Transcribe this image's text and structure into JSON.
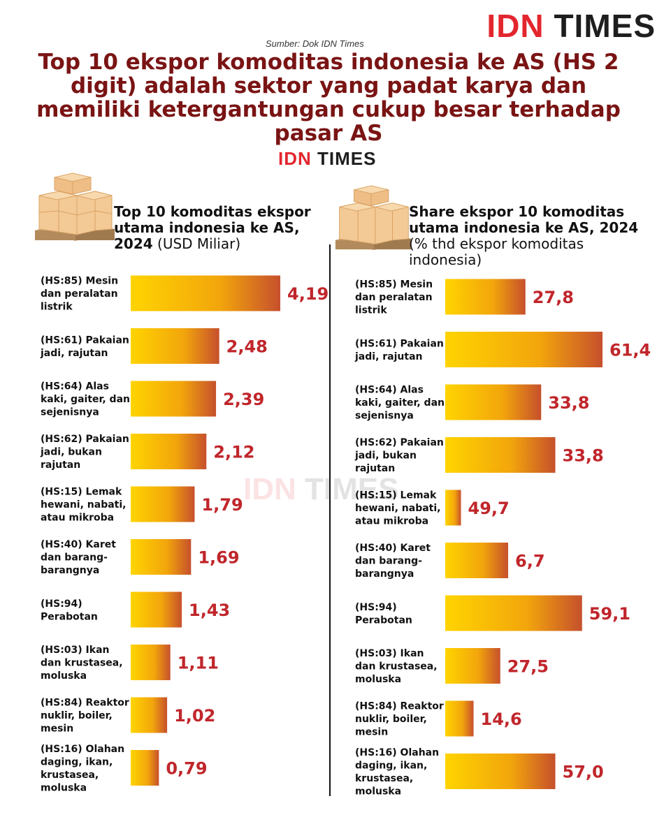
{
  "brand": {
    "idn": "IDN",
    "times": "TIMES"
  },
  "source": "Sumber: Dok IDN Times",
  "headline": "Top 10 ekspor komoditas indonesia ke AS (HS 2 digit) adalah sektor yang padat karya dan memiliki ketergantungan cukup besar terhadap pasar AS",
  "left_panel": {
    "title_bold": "Top 10 komoditas ekspor utama indonesia ke AS, 2024",
    "title_unit": "(USD Miliar)"
  },
  "right_panel": {
    "title_bold": "Share ekspor 10 komoditas utama indonesia ke AS, 2024",
    "title_unit": "(% thd ekspor komoditas indonesia)"
  },
  "colors": {
    "bar_start": "#ffd400",
    "bar_end": "#c6502c",
    "value": "#c0262b",
    "headline": "#7a1414",
    "brand_red": "#e3262e"
  },
  "chart_data": [
    {
      "type": "bar",
      "orientation": "horizontal",
      "unit": "USD Miliar",
      "categories": [
        [
          "(HS:85) Mesin",
          "dan peralatan",
          "listrik"
        ],
        [
          "(HS:61) Pakaian",
          "jadi, rajutan"
        ],
        [
          "(HS:64) Alas",
          "kaki, gaiter, dan",
          "sejenisnya"
        ],
        [
          "(HS:62) Pakaian",
          "jadi, bukan",
          "rajutan"
        ],
        [
          "(HS:15) Lemak",
          "hewani, nabati,",
          "atau mikroba"
        ],
        [
          "(HS:40) Karet",
          "dan barang-",
          "barangnya"
        ],
        [
          "(HS:94)",
          "Perabotan"
        ],
        [
          "(HS:03) Ikan",
          "dan krustasea,",
          "moluska"
        ],
        [
          "(HS:84) Reaktor",
          "nuklir, boiler,",
          "mesin"
        ],
        [
          "(HS:16) Olahan",
          "daging, ikan,",
          "krustasea,",
          "moluska"
        ]
      ],
      "values": [
        4.19,
        2.48,
        2.39,
        2.12,
        1.79,
        1.69,
        1.43,
        1.11,
        1.02,
        0.79
      ],
      "value_labels": [
        "4,19",
        "2,48",
        "2,39",
        "2,12",
        "1,79",
        "1,69",
        "1,43",
        "1,11",
        "1,02",
        "0,79"
      ]
    },
    {
      "type": "bar",
      "orientation": "horizontal",
      "unit": "%",
      "categories": [
        [
          "(HS:85) Mesin",
          "dan peralatan",
          "listrik"
        ],
        [
          "(HS:61) Pakaian",
          "jadi, rajutan"
        ],
        [
          "(HS:64) Alas",
          "kaki, gaiter, dan",
          "sejenisnya"
        ],
        [
          "(HS:62) Pakaian",
          "jadi, bukan",
          "rajutan"
        ],
        [
          "(HS:15) Lemak",
          "hewani, nabati,",
          "atau mikroba"
        ],
        [
          "(HS:40) Karet",
          "dan barang-",
          "barangnya"
        ],
        [
          "(HS:94)",
          "Perabotan"
        ],
        [
          "(HS:03) Ikan",
          "dan krustasea,",
          "moluska"
        ],
        [
          "(HS:84) Reaktor",
          "nuklir, boiler,",
          "mesin"
        ],
        [
          "(HS:16) Olahan",
          "daging, ikan,",
          "krustasea,",
          "moluska"
        ]
      ],
      "values": [
        27.8,
        61.4,
        33.8,
        33.8,
        49.7,
        6.7,
        59.1,
        27.5,
        14.6,
        57.0
      ],
      "bar_levels": [
        0.51,
        1.0,
        0.61,
        0.7,
        0.1,
        0.4,
        0.87,
        0.35,
        0.18,
        0.7
      ],
      "value_labels": [
        "27,8",
        "61,4",
        "33,8",
        "33,8",
        "49,7",
        "6,7",
        "59,1",
        "27,5",
        "14,6",
        "57,0"
      ]
    }
  ]
}
